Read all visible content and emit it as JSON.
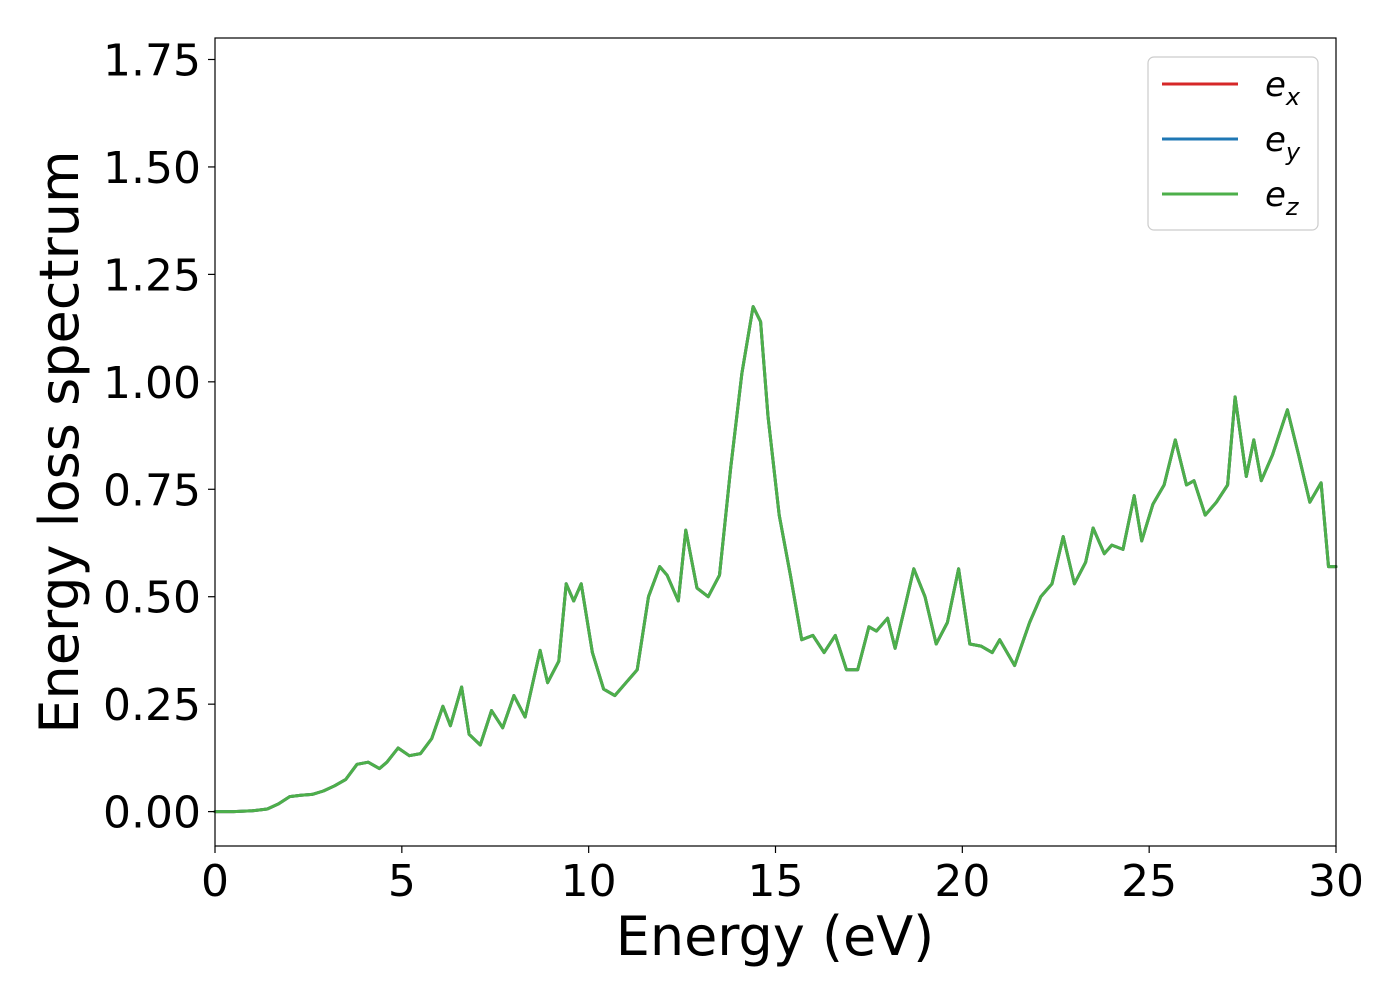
{
  "chart_data": {
    "type": "line",
    "title": "",
    "xlabel": "Energy (eV)",
    "ylabel": "Energy loss spectrum",
    "xlim": [
      0,
      30
    ],
    "ylim": [
      -0.08,
      1.8
    ],
    "xticks": [
      0,
      5,
      10,
      15,
      20,
      25,
      30
    ],
    "xtick_labels": [
      "0",
      "5",
      "10",
      "15",
      "20",
      "25",
      "30"
    ],
    "yticks": [
      0,
      0.25,
      0.5,
      0.75,
      1.0,
      1.25,
      1.5,
      1.75
    ],
    "ytick_labels": [
      "0.00",
      "0.25",
      "0.50",
      "0.75",
      "1.00",
      "1.25",
      "1.50",
      "1.75"
    ],
    "grid": false,
    "legend_position": "top-right",
    "x": [
      0,
      0.5,
      1,
      1.4,
      1.7,
      2,
      2.3,
      2.6,
      2.9,
      3.2,
      3.5,
      3.8,
      4.1,
      4.4,
      4.6,
      4.9,
      5.2,
      5.5,
      5.8,
      6.1,
      6.3,
      6.6,
      6.8,
      7.1,
      7.4,
      7.7,
      8,
      8.3,
      8.7,
      8.9,
      9.2,
      9.4,
      9.6,
      9.8,
      10.1,
      10.4,
      10.7,
      11,
      11.3,
      11.6,
      11.9,
      12.1,
      12.4,
      12.6,
      12.9,
      13.2,
      13.5,
      13.8,
      14.1,
      14.4,
      14.6,
      14.8,
      15.1,
      15.4,
      15.7,
      16,
      16.3,
      16.6,
      16.9,
      17.2,
      17.5,
      17.7,
      18,
      18.2,
      18.5,
      18.7,
      19,
      19.3,
      19.6,
      19.9,
      20.2,
      20.5,
      20.8,
      21,
      21.4,
      21.8,
      22.1,
      22.4,
      22.7,
      23,
      23.3,
      23.5,
      23.8,
      24,
      24.3,
      24.6,
      24.8,
      25.1,
      25.4,
      25.7,
      26,
      26.2,
      26.5,
      26.8,
      27.1,
      27.3,
      27.6,
      27.8,
      28,
      28.3,
      28.7,
      29,
      29.3,
      29.6,
      29.8,
      30
    ],
    "series": [
      {
        "name": "e_x",
        "label_base": "e",
        "label_sub": "x",
        "color": "#d62728",
        "values": [
          0,
          0,
          0.002,
          0.006,
          0.018,
          0.035,
          0.038,
          0.04,
          0.048,
          0.06,
          0.075,
          0.11,
          0.115,
          0.1,
          0.115,
          0.148,
          0.13,
          0.135,
          0.17,
          0.245,
          0.2,
          0.29,
          0.18,
          0.155,
          0.235,
          0.195,
          0.27,
          0.22,
          0.375,
          0.3,
          0.35,
          0.53,
          0.49,
          0.53,
          0.37,
          0.285,
          0.27,
          0.3,
          0.33,
          0.5,
          0.57,
          0.55,
          0.49,
          0.655,
          0.52,
          0.5,
          0.55,
          0.8,
          1.02,
          1.175,
          1.14,
          0.92,
          0.69,
          0.55,
          0.4,
          0.41,
          0.37,
          0.41,
          0.33,
          0.33,
          0.43,
          0.42,
          0.45,
          0.38,
          0.49,
          0.565,
          0.5,
          0.39,
          0.44,
          0.565,
          0.39,
          0.385,
          0.37,
          0.4,
          0.34,
          0.44,
          0.5,
          0.53,
          0.64,
          0.53,
          0.58,
          0.66,
          0.6,
          0.62,
          0.61,
          0.735,
          0.63,
          0.715,
          0.76,
          0.865,
          0.76,
          0.77,
          0.69,
          0.72,
          0.76,
          0.965,
          0.78,
          0.865,
          0.77,
          0.83,
          0.935,
          0.83,
          0.72,
          0.765,
          0.57,
          0.57
        ]
      },
      {
        "name": "e_y",
        "label_base": "e",
        "label_sub": "y",
        "color": "#1f77b4",
        "values": [
          0,
          0,
          0.002,
          0.006,
          0.018,
          0.035,
          0.038,
          0.04,
          0.048,
          0.06,
          0.075,
          0.11,
          0.115,
          0.1,
          0.115,
          0.148,
          0.13,
          0.135,
          0.17,
          0.245,
          0.2,
          0.29,
          0.18,
          0.155,
          0.235,
          0.195,
          0.27,
          0.22,
          0.375,
          0.3,
          0.35,
          0.53,
          0.49,
          0.53,
          0.37,
          0.285,
          0.27,
          0.3,
          0.33,
          0.5,
          0.57,
          0.55,
          0.49,
          0.655,
          0.52,
          0.5,
          0.55,
          0.8,
          1.02,
          1.175,
          1.14,
          0.92,
          0.69,
          0.55,
          0.4,
          0.41,
          0.37,
          0.41,
          0.33,
          0.33,
          0.43,
          0.42,
          0.45,
          0.38,
          0.49,
          0.565,
          0.5,
          0.39,
          0.44,
          0.565,
          0.39,
          0.385,
          0.37,
          0.4,
          0.34,
          0.44,
          0.5,
          0.53,
          0.64,
          0.53,
          0.58,
          0.66,
          0.6,
          0.62,
          0.61,
          0.735,
          0.63,
          0.715,
          0.76,
          0.865,
          0.76,
          0.77,
          0.69,
          0.72,
          0.76,
          0.965,
          0.78,
          0.865,
          0.77,
          0.83,
          0.935,
          0.83,
          0.72,
          0.765,
          0.57,
          0.57
        ]
      },
      {
        "name": "e_z",
        "label_base": "e",
        "label_sub": "z",
        "color": "#4daf4a",
        "values": [
          0,
          0,
          0.002,
          0.006,
          0.018,
          0.035,
          0.038,
          0.04,
          0.048,
          0.06,
          0.075,
          0.11,
          0.115,
          0.1,
          0.115,
          0.148,
          0.13,
          0.135,
          0.17,
          0.245,
          0.2,
          0.29,
          0.18,
          0.155,
          0.235,
          0.195,
          0.27,
          0.22,
          0.375,
          0.3,
          0.35,
          0.53,
          0.49,
          0.53,
          0.37,
          0.285,
          0.27,
          0.3,
          0.33,
          0.5,
          0.57,
          0.55,
          0.49,
          0.655,
          0.52,
          0.5,
          0.55,
          0.8,
          1.02,
          1.175,
          1.14,
          0.92,
          0.69,
          0.55,
          0.4,
          0.41,
          0.37,
          0.41,
          0.33,
          0.33,
          0.43,
          0.42,
          0.45,
          0.38,
          0.49,
          0.565,
          0.5,
          0.39,
          0.44,
          0.565,
          0.39,
          0.385,
          0.37,
          0.4,
          0.34,
          0.44,
          0.5,
          0.53,
          0.64,
          0.53,
          0.58,
          0.66,
          0.6,
          0.62,
          0.61,
          0.735,
          0.63,
          0.715,
          0.76,
          0.865,
          0.76,
          0.77,
          0.69,
          0.72,
          0.76,
          0.965,
          0.78,
          0.865,
          0.77,
          0.83,
          0.935,
          0.83,
          0.72,
          0.765,
          0.57,
          0.57
        ]
      }
    ]
  }
}
